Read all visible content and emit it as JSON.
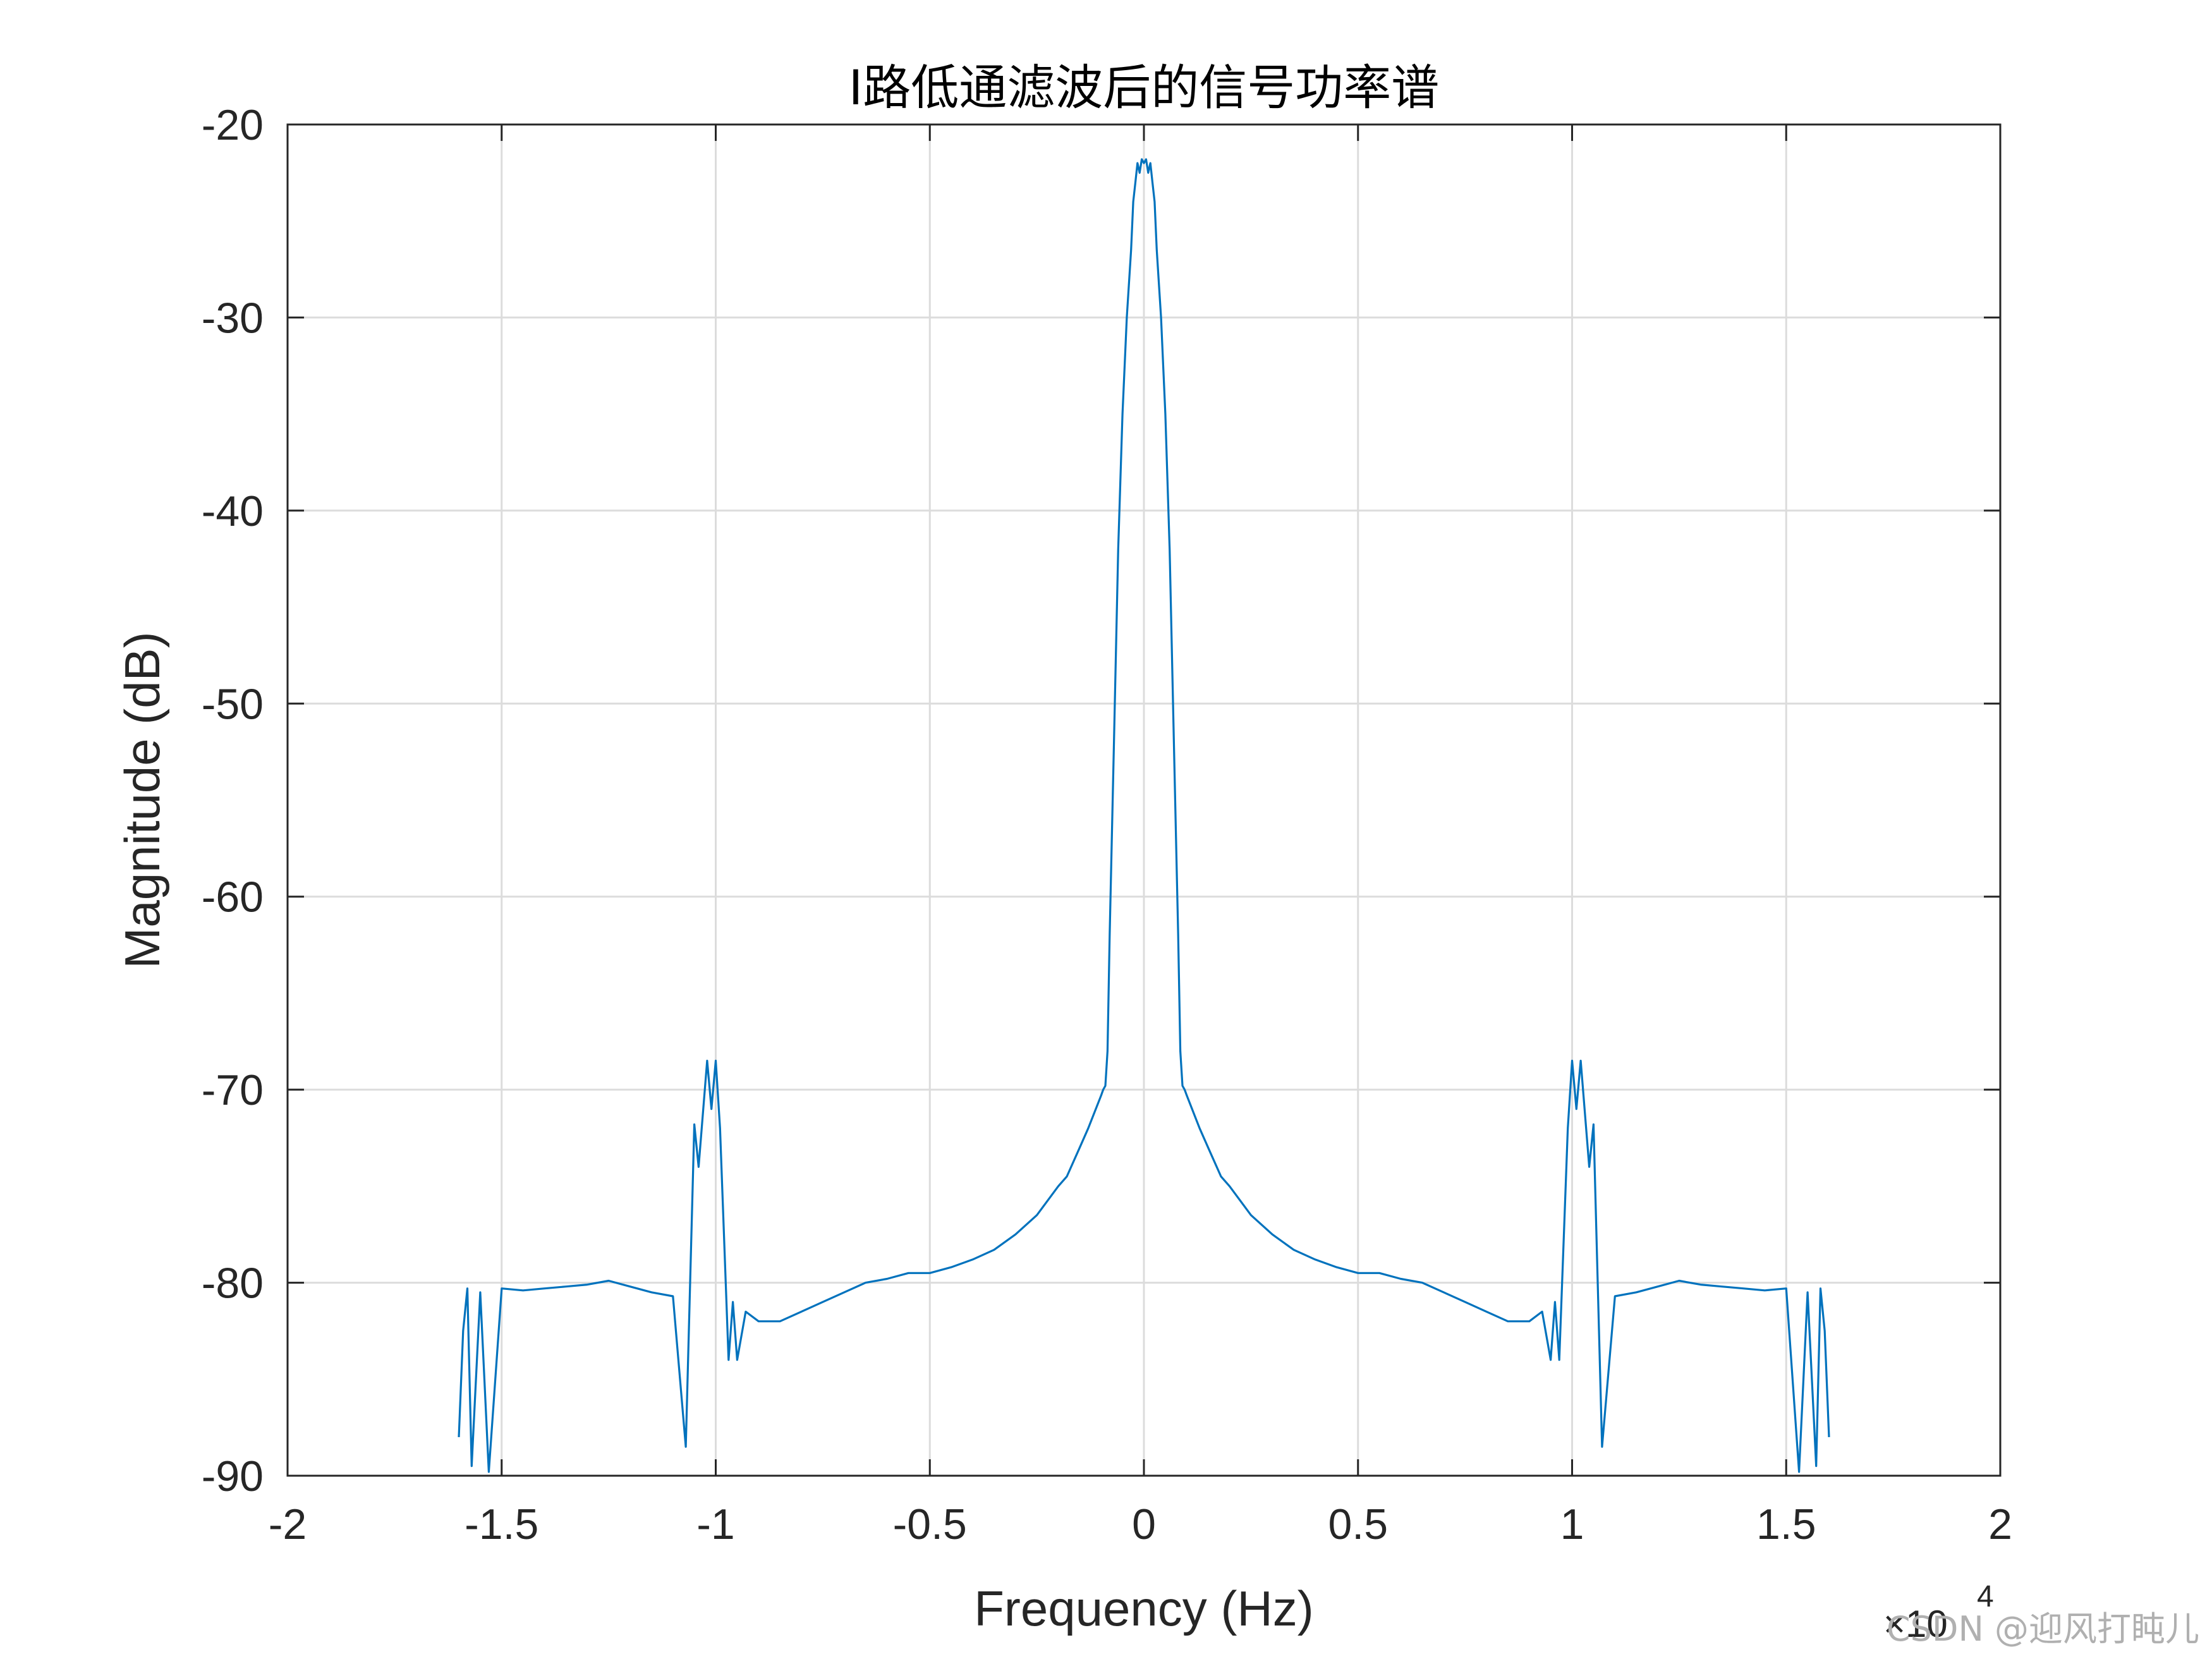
{
  "chart_data": {
    "type": "line",
    "title": "I路低通滤波后的信号功率谱",
    "xlabel": "Frequency (Hz)",
    "ylabel": "Magnitude (dB)",
    "xlim": [
      -20000,
      20000
    ],
    "ylim": [
      -90,
      -20
    ],
    "x_tick_labels": [
      "-2",
      "-1.5",
      "-1",
      "-0.5",
      "0",
      "0.5",
      "1",
      "1.5",
      "2"
    ],
    "x_tick_values": [
      -20000,
      -15000,
      -10000,
      -5000,
      0,
      5000,
      10000,
      15000,
      20000
    ],
    "y_tick_labels": [
      "-20",
      "-30",
      "-40",
      "-50",
      "-60",
      "-70",
      "-80",
      "-90"
    ],
    "y_tick_values": [
      -20,
      -30,
      -40,
      -50,
      -60,
      -70,
      -80,
      -90
    ],
    "x_multiplier": {
      "base": "×10",
      "exponent": "4"
    },
    "grid": true,
    "legend": "none",
    "series": [
      {
        "color": "#0072bd",
        "x": [
          -16000,
          -15900,
          -15800,
          -15700,
          -15500,
          -15300,
          -15000,
          -14500,
          -14000,
          -13500,
          -13000,
          -12500,
          -12000,
          -11500,
          -11000,
          -10700,
          -10500,
          -10400,
          -10200,
          -10100,
          -10000,
          -9900,
          -9700,
          -9600,
          -9500,
          -9300,
          -9000,
          -8500,
          -8000,
          -7500,
          -7000,
          -6500,
          -6000,
          -5500,
          -5000,
          -4500,
          -4000,
          -3500,
          -3000,
          -2500,
          -2000,
          -1800,
          -1500,
          -1300,
          -1000,
          -950,
          -900,
          -850,
          -800,
          -700,
          -600,
          -500,
          -400,
          -300,
          -250,
          -200,
          -150,
          -100,
          -50,
          0,
          50,
          100,
          150,
          200,
          250,
          300,
          400,
          500,
          600,
          700,
          800,
          850,
          900,
          950,
          1000,
          1300,
          1500,
          1800,
          2000,
          2500,
          3000,
          3500,
          4000,
          4500,
          5000,
          5500,
          6000,
          6500,
          7000,
          7500,
          8000,
          8500,
          9000,
          9300,
          9500,
          9600,
          9700,
          9900,
          10000,
          10100,
          10200,
          10400,
          10500,
          10700,
          11000,
          11500,
          12000,
          12500,
          13000,
          13500,
          14000,
          14500,
          15000,
          15300,
          15500,
          15700,
          15800,
          15900,
          16000
        ],
        "y": [
          -88,
          -82.5,
          -80.3,
          -89.5,
          -80.5,
          -89.8,
          -80.3,
          -80.4,
          -80.3,
          -80.2,
          -80.1,
          -79.9,
          -80.2,
          -80.5,
          -80.7,
          -88.5,
          -71.8,
          -74,
          -68.5,
          -71,
          -68.5,
          -72,
          -84,
          -81,
          -84,
          -81.5,
          -82,
          -82,
          -81.5,
          -81,
          -80.5,
          -80,
          -79.8,
          -79.5,
          -79.5,
          -79.2,
          -78.8,
          -78.3,
          -77.5,
          -76.5,
          -75,
          -74.5,
          -73,
          -72,
          -70.3,
          -70,
          -69.8,
          -68,
          -62,
          -52,
          -42,
          -35,
          -30,
          -26.5,
          -24,
          -23,
          -22,
          -22.5,
          -21.8,
          -22,
          -21.8,
          -22.5,
          -22,
          -23,
          -24,
          -26.5,
          -30,
          -35,
          -42,
          -52,
          -62,
          -68,
          -69.8,
          -70,
          -70.3,
          -72,
          -73,
          -74.5,
          -75,
          -76.5,
          -77.5,
          -78.3,
          -78.8,
          -79.2,
          -79.5,
          -79.5,
          -79.8,
          -80,
          -80.5,
          -81,
          -81.5,
          -82,
          -82,
          -81.5,
          -84,
          -81,
          -84,
          -72,
          -68.5,
          -71,
          -68.5,
          -74,
          -71.8,
          -88.5,
          -80.7,
          -80.5,
          -80.2,
          -79.9,
          -80.1,
          -80.2,
          -80.3,
          -80.4,
          -80.3,
          -89.8,
          -80.5,
          -89.5,
          -80.3,
          -82.5,
          -88
        ]
      }
    ]
  },
  "watermark": "CSDN @迎风打盹儿"
}
